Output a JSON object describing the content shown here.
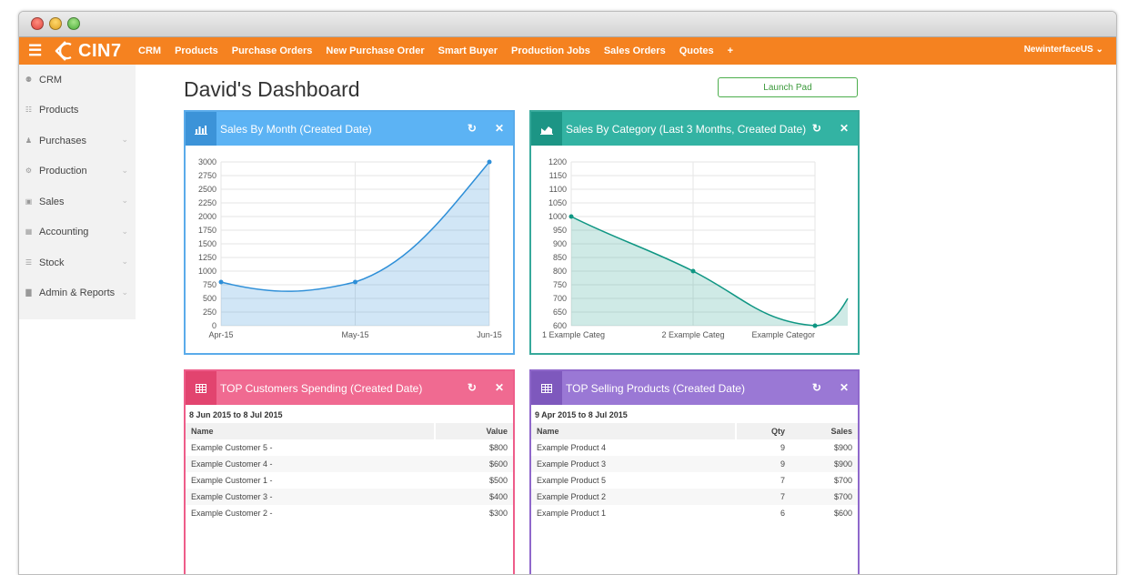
{
  "app": {
    "logo_text": "CIN7"
  },
  "topnav": {
    "items": [
      "CRM",
      "Products",
      "Purchase Orders",
      "New Purchase Order",
      "Smart Buyer",
      "Production Jobs",
      "Sales Orders",
      "Quotes",
      "+"
    ],
    "user": "NewinterfaceUS ⌄",
    "colors": {
      "brand": "#f58220"
    }
  },
  "sidebar": {
    "items": [
      {
        "label": "CRM",
        "icon": "users-icon",
        "chevron": false
      },
      {
        "label": "Products",
        "icon": "grid-icon",
        "chevron": false
      },
      {
        "label": "Purchases",
        "icon": "user-icon",
        "chevron": true
      },
      {
        "label": "Production",
        "icon": "cogs-icon",
        "chevron": true
      },
      {
        "label": "Sales",
        "icon": "money-icon",
        "chevron": true
      },
      {
        "label": "Accounting",
        "icon": "calculator-icon",
        "chevron": true
      },
      {
        "label": "Stock",
        "icon": "list-icon",
        "chevron": true
      },
      {
        "label": "Admin & Reports",
        "icon": "chart-icon",
        "chevron": true
      }
    ]
  },
  "page": {
    "title": "David's Dashboard",
    "launch_pad": "Launch Pad"
  },
  "widgets": {
    "sales_by_month": {
      "title": "Sales By Month (Created Date)"
    },
    "sales_by_category": {
      "title": "Sales By Category (Last 3 Months, Created Date)"
    },
    "top_customers": {
      "title": "TOP Customers Spending (Created Date)",
      "range": "8 Jun 2015 to 8 Jul 2015",
      "headers": [
        "Name",
        "Value"
      ],
      "rows": [
        [
          "Example Customer 5 -",
          "$800"
        ],
        [
          "Example Customer 4 -",
          "$600"
        ],
        [
          "Example Customer 1 -",
          "$500"
        ],
        [
          "Example Customer 3 -",
          "$400"
        ],
        [
          "Example Customer 2 -",
          "$300"
        ]
      ]
    },
    "top_products": {
      "title": "TOP Selling Products (Created Date)",
      "range": "9 Apr 2015 to 8 Jul 2015",
      "headers": [
        "Name",
        "Qty",
        "Sales"
      ],
      "rows": [
        [
          "Example Product 4",
          "9",
          "$900"
        ],
        [
          "Example Product 3",
          "9",
          "$900"
        ],
        [
          "Example Product 5",
          "7",
          "$700"
        ],
        [
          "Example Product 2",
          "7",
          "$700"
        ],
        [
          "Example Product 1",
          "6",
          "$600"
        ]
      ]
    }
  },
  "chart_data": [
    {
      "type": "area",
      "categories": [
        "Apr-15",
        "May-15",
        "Jun-15"
      ],
      "values": [
        800,
        800,
        3000
      ],
      "ylim": [
        0,
        3000
      ],
      "yticks": [
        0,
        250,
        500,
        750,
        1000,
        1250,
        1500,
        1750,
        2000,
        2250,
        2500,
        2750,
        3000
      ],
      "grid": true,
      "color": "#2e8fd8"
    },
    {
      "type": "area",
      "categories": [
        "1 Example Categ",
        "2 Example Categ",
        "Example Categor"
      ],
      "values": [
        1000,
        800,
        600
      ],
      "ylim": [
        600,
        1200
      ],
      "yticks": [
        600,
        650,
        700,
        750,
        800,
        850,
        900,
        950,
        1000,
        1050,
        1100,
        1150,
        1200
      ],
      "grid": true,
      "color": "#0f9683"
    }
  ]
}
